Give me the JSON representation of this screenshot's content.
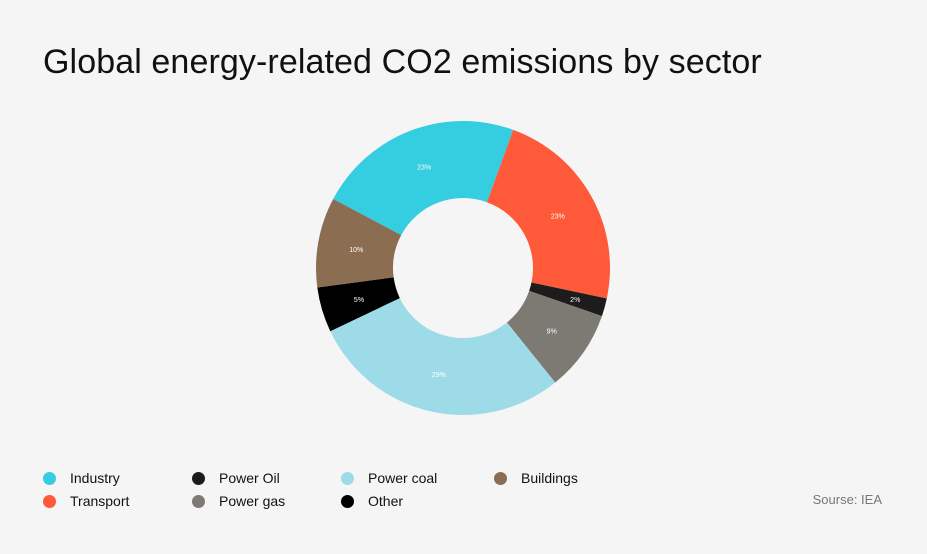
{
  "chart_data": {
    "type": "pie",
    "title": "Global energy-related CO2 emissions by sector",
    "source": "Sourse: IEA",
    "slices": [
      {
        "name": "Industry",
        "value": 23,
        "label": "23%",
        "color": "#35cde0"
      },
      {
        "name": "Transport",
        "value": 23,
        "label": "23%",
        "color": "#fe5a3a"
      },
      {
        "name": "Power Oil",
        "value": 2,
        "label": "2%",
        "color": "#1c1c1c"
      },
      {
        "name": "Power gas",
        "value": 9,
        "label": "9%",
        "color": "#7d7a74"
      },
      {
        "name": "Power coal",
        "value": 29,
        "label": "29%",
        "color": "#9edbe9"
      },
      {
        "name": "Other",
        "value": 5,
        "label": "5%",
        "color": "#000000"
      },
      {
        "name": "Buildings",
        "value": 10,
        "label": "10%",
        "color": "#8b6e52"
      }
    ],
    "legend_order": [
      "Industry",
      "Power Oil",
      "Power coal",
      "Buildings",
      "Transport",
      "Power gas",
      "Other"
    ],
    "legend_placement": "bottom-left",
    "donut": true
  }
}
